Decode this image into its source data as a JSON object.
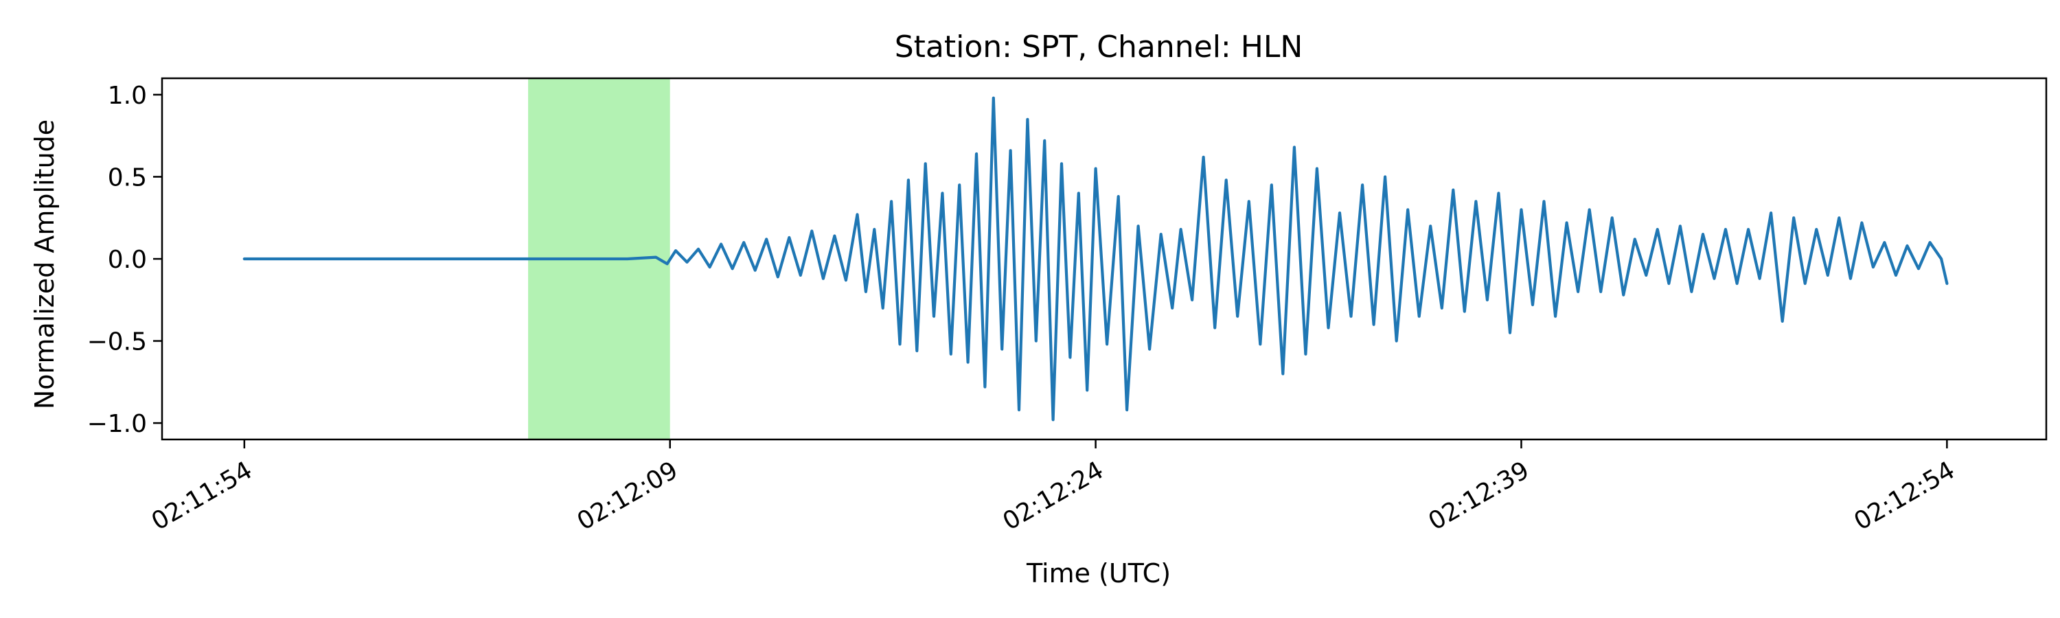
{
  "chart_data": {
    "type": "line",
    "title": "Station: SPT, Channel: HLN",
    "xlabel": "Time (UTC)",
    "ylabel": "Normalized Amplitude",
    "x_unit": "seconds",
    "xlim": [
      -2.9,
      63.5
    ],
    "ylim": [
      -1.1,
      1.1
    ],
    "x_ticks": [
      0,
      15,
      30,
      45,
      60
    ],
    "x_tick_labels": [
      "02:11:54",
      "02:12:09",
      "02:12:24",
      "02:12:39",
      "02:12:54"
    ],
    "y_ticks": [
      1.0,
      0.5,
      0.0,
      -0.5,
      -1.0
    ],
    "y_tick_labels": [
      "1.0",
      "0.5",
      "0.0",
      "−0.5",
      "−1.0"
    ],
    "grid": false,
    "highlight_span": {
      "x": [
        10.0,
        15.0
      ],
      "color": "#b3f2b3"
    },
    "series": [
      {
        "color": "#1f77b4",
        "points": [
          [
            0.0,
            0.0
          ],
          [
            2.0,
            0.0
          ],
          [
            4.0,
            0.0
          ],
          [
            6.0,
            0.0
          ],
          [
            8.0,
            0.0
          ],
          [
            10.0,
            0.0
          ],
          [
            12.0,
            0.0
          ],
          [
            13.5,
            0.0
          ],
          [
            14.5,
            0.01
          ],
          [
            14.9,
            -0.03
          ],
          [
            15.2,
            0.05
          ],
          [
            15.6,
            -0.02
          ],
          [
            16.0,
            0.06
          ],
          [
            16.4,
            -0.05
          ],
          [
            16.8,
            0.09
          ],
          [
            17.2,
            -0.06
          ],
          [
            17.6,
            0.1
          ],
          [
            18.0,
            -0.07
          ],
          [
            18.4,
            0.12
          ],
          [
            18.8,
            -0.11
          ],
          [
            19.2,
            0.13
          ],
          [
            19.6,
            -0.1
          ],
          [
            20.0,
            0.17
          ],
          [
            20.4,
            -0.12
          ],
          [
            20.8,
            0.14
          ],
          [
            21.2,
            -0.13
          ],
          [
            21.6,
            0.27
          ],
          [
            21.9,
            -0.2
          ],
          [
            22.2,
            0.18
          ],
          [
            22.5,
            -0.3
          ],
          [
            22.8,
            0.35
          ],
          [
            23.1,
            -0.52
          ],
          [
            23.4,
            0.48
          ],
          [
            23.7,
            -0.56
          ],
          [
            24.0,
            0.58
          ],
          [
            24.3,
            -0.35
          ],
          [
            24.6,
            0.4
          ],
          [
            24.9,
            -0.58
          ],
          [
            25.2,
            0.45
          ],
          [
            25.5,
            -0.63
          ],
          [
            25.8,
            0.64
          ],
          [
            26.1,
            -0.78
          ],
          [
            26.4,
            0.98
          ],
          [
            26.7,
            -0.55
          ],
          [
            27.0,
            0.66
          ],
          [
            27.3,
            -0.92
          ],
          [
            27.6,
            0.85
          ],
          [
            27.9,
            -0.5
          ],
          [
            28.2,
            0.72
          ],
          [
            28.5,
            -0.98
          ],
          [
            28.8,
            0.58
          ],
          [
            29.1,
            -0.6
          ],
          [
            29.4,
            0.4
          ],
          [
            29.7,
            -0.8
          ],
          [
            30.0,
            0.55
          ],
          [
            30.4,
            -0.52
          ],
          [
            30.8,
            0.38
          ],
          [
            31.1,
            -0.92
          ],
          [
            31.5,
            0.2
          ],
          [
            31.9,
            -0.55
          ],
          [
            32.3,
            0.15
          ],
          [
            32.7,
            -0.3
          ],
          [
            33.0,
            0.18
          ],
          [
            33.4,
            -0.25
          ],
          [
            33.8,
            0.62
          ],
          [
            34.2,
            -0.42
          ],
          [
            34.6,
            0.48
          ],
          [
            35.0,
            -0.35
          ],
          [
            35.4,
            0.35
          ],
          [
            35.8,
            -0.52
          ],
          [
            36.2,
            0.45
          ],
          [
            36.6,
            -0.7
          ],
          [
            37.0,
            0.68
          ],
          [
            37.4,
            -0.58
          ],
          [
            37.8,
            0.55
          ],
          [
            38.2,
            -0.42
          ],
          [
            38.6,
            0.28
          ],
          [
            39.0,
            -0.35
          ],
          [
            39.4,
            0.45
          ],
          [
            39.8,
            -0.4
          ],
          [
            40.2,
            0.5
          ],
          [
            40.6,
            -0.5
          ],
          [
            41.0,
            0.3
          ],
          [
            41.4,
            -0.35
          ],
          [
            41.8,
            0.2
          ],
          [
            42.2,
            -0.3
          ],
          [
            42.6,
            0.42
          ],
          [
            43.0,
            -0.32
          ],
          [
            43.4,
            0.35
          ],
          [
            43.8,
            -0.25
          ],
          [
            44.2,
            0.4
          ],
          [
            44.6,
            -0.45
          ],
          [
            45.0,
            0.3
          ],
          [
            45.4,
            -0.28
          ],
          [
            45.8,
            0.35
          ],
          [
            46.2,
            -0.35
          ],
          [
            46.6,
            0.22
          ],
          [
            47.0,
            -0.2
          ],
          [
            47.4,
            0.3
          ],
          [
            47.8,
            -0.2
          ],
          [
            48.2,
            0.25
          ],
          [
            48.6,
            -0.22
          ],
          [
            49.0,
            0.12
          ],
          [
            49.4,
            -0.1
          ],
          [
            49.8,
            0.18
          ],
          [
            50.2,
            -0.15
          ],
          [
            50.6,
            0.2
          ],
          [
            51.0,
            -0.2
          ],
          [
            51.4,
            0.15
          ],
          [
            51.8,
            -0.12
          ],
          [
            52.2,
            0.18
          ],
          [
            52.6,
            -0.15
          ],
          [
            53.0,
            0.18
          ],
          [
            53.4,
            -0.12
          ],
          [
            53.8,
            0.28
          ],
          [
            54.2,
            -0.38
          ],
          [
            54.6,
            0.25
          ],
          [
            55.0,
            -0.15
          ],
          [
            55.4,
            0.18
          ],
          [
            55.8,
            -0.1
          ],
          [
            56.2,
            0.25
          ],
          [
            56.6,
            -0.12
          ],
          [
            57.0,
            0.22
          ],
          [
            57.4,
            -0.05
          ],
          [
            57.8,
            0.1
          ],
          [
            58.2,
            -0.1
          ],
          [
            58.6,
            0.08
          ],
          [
            59.0,
            -0.06
          ],
          [
            59.4,
            0.1
          ],
          [
            59.8,
            0.0
          ],
          [
            60.0,
            -0.15
          ]
        ]
      }
    ]
  }
}
